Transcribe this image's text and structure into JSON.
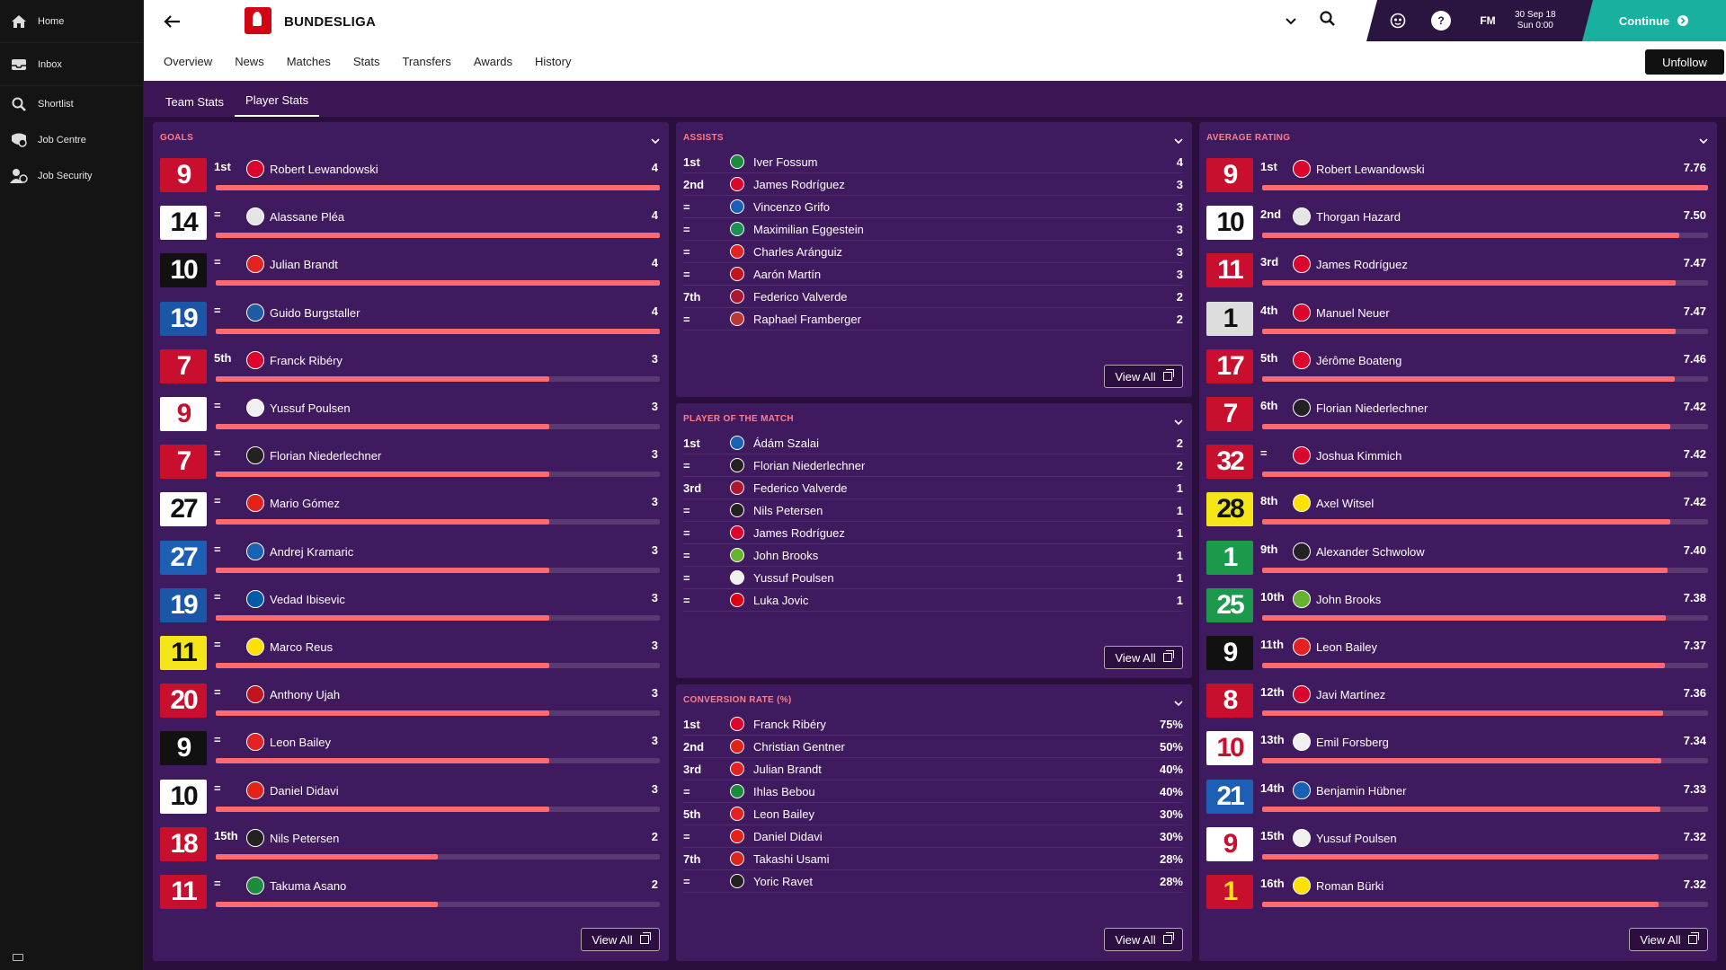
{
  "sidebar": {
    "items": [
      {
        "label": "Home",
        "icon": "home-icon"
      },
      {
        "label": "Inbox",
        "icon": "inbox-icon"
      },
      {
        "label": "Shortlist",
        "icon": "search-icon"
      },
      {
        "label": "Job Centre",
        "icon": "job-centre-icon"
      },
      {
        "label": "Job Security",
        "icon": "job-security-icon"
      }
    ]
  },
  "header": {
    "title": "BUNDESLIGA",
    "tabs": [
      "Overview",
      "News",
      "Matches",
      "Stats",
      "Transfers",
      "Awards",
      "History"
    ],
    "active_tab": "Stats",
    "fm_label": "FM",
    "help_label": "?",
    "date_line1": "30 Sep 18",
    "date_line2": "Sun 0:00",
    "continue_label": "Continue",
    "unfollow_label": "Unfollow"
  },
  "subtabs": {
    "items": [
      "Team Stats",
      "Player Stats"
    ],
    "active": "Player Stats"
  },
  "view_all_label": "View All",
  "goals": {
    "title": "GOALS",
    "max": 4,
    "rows": [
      {
        "number": "9",
        "rank": "1st",
        "name": "Robert Lewandowski",
        "value": "4",
        "n": 4,
        "club": "bayern",
        "shirt_bg": "#c8102e",
        "shirt_fg": "#ffffff"
      },
      {
        "number": "14",
        "rank": "=",
        "name": "Alassane Pléa",
        "value": "4",
        "n": 4,
        "club": "gladbach",
        "shirt_bg": "#ffffff",
        "shirt_fg": "#111111"
      },
      {
        "number": "10",
        "rank": "=",
        "name": "Julian Brandt",
        "value": "4",
        "n": 4,
        "club": "leverkusen",
        "shirt_bg": "#111111",
        "shirt_fg": "#ffffff"
      },
      {
        "number": "19",
        "rank": "=",
        "name": "Guido Burgstaller",
        "value": "4",
        "n": 4,
        "club": "schalke",
        "shirt_bg": "#1c56a6",
        "shirt_fg": "#ffffff"
      },
      {
        "number": "7",
        "rank": "5th",
        "name": "Franck Ribéry",
        "value": "3",
        "n": 3,
        "club": "bayern",
        "shirt_bg": "#c8102e",
        "shirt_fg": "#ffffff"
      },
      {
        "number": "9",
        "rank": "=",
        "name": "Yussuf Poulsen",
        "value": "3",
        "n": 3,
        "club": "leipzig",
        "shirt_bg": "#ffffff",
        "shirt_fg": "#c8102e"
      },
      {
        "number": "7",
        "rank": "=",
        "name": "Florian Niederlechner",
        "value": "3",
        "n": 3,
        "club": "freiburg",
        "shirt_bg": "#c8102e",
        "shirt_fg": "#ffffff"
      },
      {
        "number": "27",
        "rank": "=",
        "name": "Mario Gómez",
        "value": "3",
        "n": 3,
        "club": "stuttgart",
        "shirt_bg": "#ffffff",
        "shirt_fg": "#111111"
      },
      {
        "number": "27",
        "rank": "=",
        "name": "Andrej Kramaric",
        "value": "3",
        "n": 3,
        "club": "hoffenheim",
        "shirt_bg": "#1c5fb5",
        "shirt_fg": "#ffffff"
      },
      {
        "number": "19",
        "rank": "=",
        "name": "Vedad Ibisevic",
        "value": "3",
        "n": 3,
        "club": "hertha",
        "shirt_bg": "#1c56a6",
        "shirt_fg": "#ffffff"
      },
      {
        "number": "11",
        "rank": "=",
        "name": "Marco Reus",
        "value": "3",
        "n": 3,
        "club": "dortmund",
        "shirt_bg": "#f5e61a",
        "shirt_fg": "#111111"
      },
      {
        "number": "20",
        "rank": "=",
        "name": "Anthony Ujah",
        "value": "3",
        "n": 3,
        "club": "mainz",
        "shirt_bg": "#c8102e",
        "shirt_fg": "#ffffff"
      },
      {
        "number": "9",
        "rank": "=",
        "name": "Leon Bailey",
        "value": "3",
        "n": 3,
        "club": "leverkusen",
        "shirt_bg": "#111111",
        "shirt_fg": "#ffffff"
      },
      {
        "number": "10",
        "rank": "=",
        "name": "Daniel Didavi",
        "value": "3",
        "n": 3,
        "club": "stuttgart",
        "shirt_bg": "#ffffff",
        "shirt_fg": "#111111"
      },
      {
        "number": "18",
        "rank": "15th",
        "name": "Nils Petersen",
        "value": "2",
        "n": 2,
        "club": "freiburg",
        "shirt_bg": "#c8102e",
        "shirt_fg": "#ffffff"
      },
      {
        "number": "11",
        "rank": "=",
        "name": "Takuma Asano",
        "value": "2",
        "n": 2,
        "club": "hannover",
        "shirt_bg": "#c8102e",
        "shirt_fg": "#ffffff"
      }
    ]
  },
  "assists": {
    "title": "ASSISTS",
    "rows": [
      {
        "rank": "1st",
        "name": "Iver Fossum",
        "value": "4",
        "club": "hannover"
      },
      {
        "rank": "2nd",
        "name": "James Rodríguez",
        "value": "3",
        "club": "bayern"
      },
      {
        "rank": "=",
        "name": "Vincenzo Grifo",
        "value": "3",
        "club": "hoffenheim"
      },
      {
        "rank": "=",
        "name": "Maximilian Eggestein",
        "value": "3",
        "club": "bremen"
      },
      {
        "rank": "=",
        "name": "Charles Aránguiz",
        "value": "3",
        "club": "leverkusen"
      },
      {
        "rank": "=",
        "name": "Aarón Martín",
        "value": "3",
        "club": "mainz"
      },
      {
        "rank": "7th",
        "name": "Federico Valverde",
        "value": "2",
        "club": "nurnberg"
      },
      {
        "rank": "=",
        "name": "Raphael Framberger",
        "value": "2",
        "club": "augsburg"
      }
    ]
  },
  "potm": {
    "title": "PLAYER OF THE MATCH",
    "rows": [
      {
        "rank": "1st",
        "name": "Ádám Szalai",
        "value": "2",
        "club": "hoffenheim"
      },
      {
        "rank": "=",
        "name": "Florian Niederlechner",
        "value": "2",
        "club": "freiburg"
      },
      {
        "rank": "3rd",
        "name": "Federico Valverde",
        "value": "1",
        "club": "nurnberg"
      },
      {
        "rank": "=",
        "name": "Nils Petersen",
        "value": "1",
        "club": "freiburg"
      },
      {
        "rank": "=",
        "name": "James Rodríguez",
        "value": "1",
        "club": "bayern"
      },
      {
        "rank": "=",
        "name": "John Brooks",
        "value": "1",
        "club": "wolfsburg"
      },
      {
        "rank": "=",
        "name": "Yussuf Poulsen",
        "value": "1",
        "club": "leipzig"
      },
      {
        "rank": "=",
        "name": "Luka Jovic",
        "value": "1",
        "club": "frankfurt"
      }
    ]
  },
  "conversion": {
    "title": "CONVERSION RATE (%)",
    "rows": [
      {
        "rank": "1st",
        "name": "Franck Ribéry",
        "value": "75%",
        "club": "bayern"
      },
      {
        "rank": "2nd",
        "name": "Christian Gentner",
        "value": "50%",
        "club": "stuttgart"
      },
      {
        "rank": "3rd",
        "name": "Julian Brandt",
        "value": "40%",
        "club": "leverkusen"
      },
      {
        "rank": "=",
        "name": "Ihlas Bebou",
        "value": "40%",
        "club": "hannover"
      },
      {
        "rank": "5th",
        "name": "Leon Bailey",
        "value": "30%",
        "club": "leverkusen"
      },
      {
        "rank": "=",
        "name": "Daniel Didavi",
        "value": "30%",
        "club": "stuttgart"
      },
      {
        "rank": "7th",
        "name": "Takashi Usami",
        "value": "28%",
        "club": "dusseldorf"
      },
      {
        "rank": "=",
        "name": "Yoric Ravet",
        "value": "28%",
        "club": "freiburg"
      }
    ]
  },
  "rating": {
    "title": "AVERAGE RATING",
    "rows": [
      {
        "number": "9",
        "rank": "1st",
        "name": "Robert Lewandowski",
        "value": "7.76",
        "n": 7.76,
        "club": "bayern",
        "shirt_bg": "#c8102e",
        "shirt_fg": "#ffffff"
      },
      {
        "number": "10",
        "rank": "2nd",
        "name": "Thorgan Hazard",
        "value": "7.50",
        "n": 7.5,
        "club": "gladbach",
        "shirt_bg": "#ffffff",
        "shirt_fg": "#111111"
      },
      {
        "number": "11",
        "rank": "3rd",
        "name": "James Rodríguez",
        "value": "7.47",
        "n": 7.47,
        "club": "bayern",
        "shirt_bg": "#c8102e",
        "shirt_fg": "#ffffff"
      },
      {
        "number": "1",
        "rank": "4th",
        "name": "Manuel Neuer",
        "value": "7.47",
        "n": 7.47,
        "club": "bayern",
        "shirt_bg": "#dddddd",
        "shirt_fg": "#111111"
      },
      {
        "number": "17",
        "rank": "5th",
        "name": "Jérôme Boateng",
        "value": "7.46",
        "n": 7.46,
        "club": "bayern",
        "shirt_bg": "#c8102e",
        "shirt_fg": "#ffffff"
      },
      {
        "number": "7",
        "rank": "6th",
        "name": "Florian Niederlechner",
        "value": "7.42",
        "n": 7.42,
        "club": "freiburg",
        "shirt_bg": "#c8102e",
        "shirt_fg": "#ffffff"
      },
      {
        "number": "32",
        "rank": "=",
        "name": "Joshua Kimmich",
        "value": "7.42",
        "n": 7.42,
        "club": "bayern",
        "shirt_bg": "#c8102e",
        "shirt_fg": "#ffffff"
      },
      {
        "number": "28",
        "rank": "8th",
        "name": "Axel Witsel",
        "value": "7.42",
        "n": 7.42,
        "club": "dortmund",
        "shirt_bg": "#f5e61a",
        "shirt_fg": "#111111"
      },
      {
        "number": "1",
        "rank": "9th",
        "name": "Alexander Schwolow",
        "value": "7.40",
        "n": 7.4,
        "club": "freiburg",
        "shirt_bg": "#1a9a4a",
        "shirt_fg": "#ffffff"
      },
      {
        "number": "25",
        "rank": "10th",
        "name": "John Brooks",
        "value": "7.38",
        "n": 7.38,
        "club": "wolfsburg",
        "shirt_bg": "#1a9a4a",
        "shirt_fg": "#ffffff"
      },
      {
        "number": "9",
        "rank": "11th",
        "name": "Leon Bailey",
        "value": "7.37",
        "n": 7.37,
        "club": "leverkusen",
        "shirt_bg": "#111111",
        "shirt_fg": "#ffffff"
      },
      {
        "number": "8",
        "rank": "12th",
        "name": "Javi Martínez",
        "value": "7.36",
        "n": 7.36,
        "club": "bayern",
        "shirt_bg": "#c8102e",
        "shirt_fg": "#ffffff"
      },
      {
        "number": "10",
        "rank": "13th",
        "name": "Emil Forsberg",
        "value": "7.34",
        "n": 7.34,
        "club": "leipzig",
        "shirt_bg": "#ffffff",
        "shirt_fg": "#c8102e"
      },
      {
        "number": "21",
        "rank": "14th",
        "name": "Benjamin Hübner",
        "value": "7.33",
        "n": 7.33,
        "club": "hoffenheim",
        "shirt_bg": "#1c5fb5",
        "shirt_fg": "#ffffff"
      },
      {
        "number": "9",
        "rank": "15th",
        "name": "Yussuf Poulsen",
        "value": "7.32",
        "n": 7.32,
        "club": "leipzig",
        "shirt_bg": "#ffffff",
        "shirt_fg": "#c8102e"
      },
      {
        "number": "1",
        "rank": "16th",
        "name": "Roman Bürki",
        "value": "7.32",
        "n": 7.32,
        "club": "dortmund",
        "shirt_bg": "#c8102e",
        "shirt_fg": "#f5e61a"
      }
    ]
  },
  "club_colors": {
    "bayern": "#dc052d",
    "gladbach": "#e5e5e5",
    "leverkusen": "#e32221",
    "schalke": "#1d5ba4",
    "leipzig": "#f0f0f0",
    "freiburg": "#222222",
    "stuttgart": "#e32219",
    "hoffenheim": "#1961b5",
    "hertha": "#005ca9",
    "dortmund": "#fde100",
    "mainz": "#c3141e",
    "hannover": "#1b8c3c",
    "bremen": "#1d9053",
    "nurnberg": "#ad1732",
    "augsburg": "#ba3733",
    "wolfsburg": "#65b32e",
    "frankfurt": "#e1000f",
    "dusseldorf": "#da251d"
  },
  "colors": {
    "accent": "#ff6a6f",
    "panel": "#3f1a5e",
    "background": "#2a0f3c",
    "continue": "#19b0a0"
  }
}
